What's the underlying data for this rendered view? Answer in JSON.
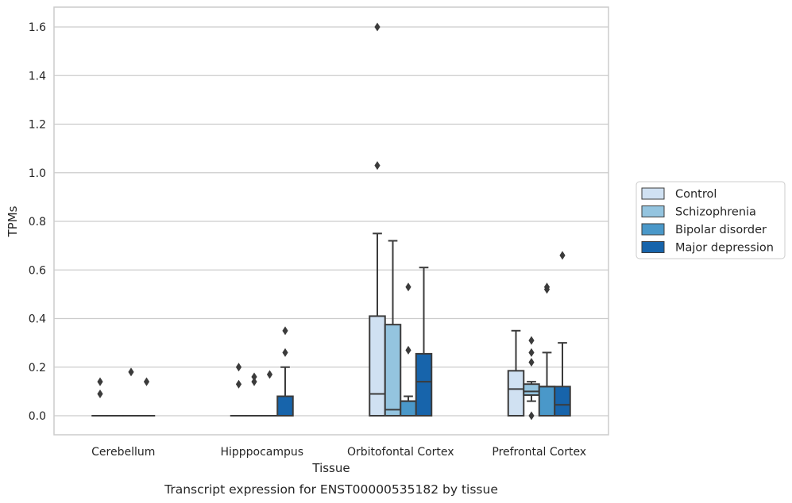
{
  "chart_data": {
    "type": "boxplot",
    "xlabel": "Tissue",
    "ylabel": "TPMs",
    "caption": "Transcript expression for ENST00000535182 by tissue",
    "ylim": [
      -0.08,
      1.68
    ],
    "yticks": [
      0.0,
      0.2,
      0.4,
      0.6,
      0.8,
      1.0,
      1.2,
      1.4,
      1.6
    ],
    "ytick_labels": [
      "0.0",
      "0.2",
      "0.4",
      "0.6",
      "0.8",
      "1.0",
      "1.2",
      "1.4",
      "1.6"
    ],
    "grid": "horizontal",
    "legend_position": "right",
    "categories": [
      "Cerebellum",
      "Hipppocampus",
      "Orbitofontal Cortex",
      "Prefrontal Cortex"
    ],
    "series": [
      {
        "name": "Control",
        "color": "#d0e1f2",
        "boxes": [
          {
            "q1": 0,
            "median": 0,
            "q3": 0,
            "whisker_low": 0,
            "whisker_high": 0,
            "outliers": [
              0.14,
              0.09
            ]
          },
          {
            "q1": 0,
            "median": 0,
            "q3": 0,
            "whisker_low": 0,
            "whisker_high": 0,
            "outliers": [
              0.2,
              0.13
            ]
          },
          {
            "q1": 0,
            "median": 0.09,
            "q3": 0.41,
            "whisker_low": 0,
            "whisker_high": 0.75,
            "outliers": [
              1.6,
              1.03
            ]
          },
          {
            "q1": 0,
            "median": 0.11,
            "q3": 0.185,
            "whisker_low": 0,
            "whisker_high": 0.35,
            "outliers": []
          }
        ]
      },
      {
        "name": "Schizophrenia",
        "color": "#94c4df",
        "boxes": [
          {
            "q1": 0,
            "median": 0,
            "q3": 0,
            "whisker_low": 0,
            "whisker_high": 0,
            "outliers": []
          },
          {
            "q1": 0,
            "median": 0,
            "q3": 0,
            "whisker_low": 0,
            "whisker_high": 0,
            "outliers": [
              0.16,
              0.14
            ]
          },
          {
            "q1": 0,
            "median": 0.025,
            "q3": 0.375,
            "whisker_low": 0,
            "whisker_high": 0.72,
            "outliers": []
          },
          {
            "q1": 0.085,
            "median": 0.1,
            "q3": 0.13,
            "whisker_low": 0.06,
            "whisker_high": 0.14,
            "outliers": [
              0.31,
              0.26,
              0.22,
              0.0
            ]
          }
        ]
      },
      {
        "name": "Bipolar disorder",
        "color": "#4a98c9",
        "boxes": [
          {
            "q1": 0,
            "median": 0,
            "q3": 0,
            "whisker_low": 0,
            "whisker_high": 0,
            "outliers": [
              0.18
            ]
          },
          {
            "q1": 0,
            "median": 0,
            "q3": 0,
            "whisker_low": 0,
            "whisker_high": 0,
            "outliers": [
              0.17
            ]
          },
          {
            "q1": 0,
            "median": 0.06,
            "q3": 0.06,
            "whisker_low": 0,
            "whisker_high": 0.08,
            "outliers": [
              0.53,
              0.27
            ]
          },
          {
            "q1": 0,
            "median": 0.12,
            "q3": 0.12,
            "whisker_low": 0,
            "whisker_high": 0.26,
            "outliers": [
              0.53,
              0.52
            ]
          }
        ]
      },
      {
        "name": "Major depression",
        "color": "#1764ab",
        "boxes": [
          {
            "q1": 0,
            "median": 0,
            "q3": 0,
            "whisker_low": 0,
            "whisker_high": 0,
            "outliers": [
              0.14
            ]
          },
          {
            "q1": 0,
            "median": 0,
            "q3": 0.08,
            "whisker_low": 0,
            "whisker_high": 0.2,
            "outliers": [
              0.35,
              0.26
            ]
          },
          {
            "q1": 0,
            "median": 0.14,
            "q3": 0.255,
            "whisker_low": 0,
            "whisker_high": 0.61,
            "outliers": []
          },
          {
            "q1": 0,
            "median": 0.045,
            "q3": 0.12,
            "whisker_low": 0,
            "whisker_high": 0.3,
            "outliers": [
              0.66
            ]
          }
        ]
      }
    ]
  }
}
